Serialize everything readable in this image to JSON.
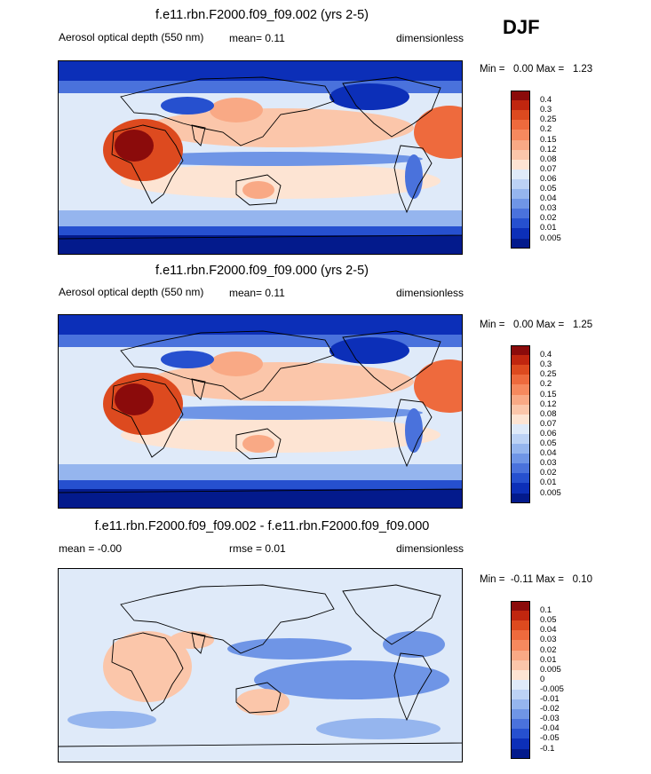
{
  "season": "DJF",
  "panels": [
    {
      "title": "f.e11.rbn.F2000.f09_f09.002 (yrs 2-5)",
      "left": "Aerosol optical depth (550 nm)",
      "middle": "mean=  0.11",
      "right": "dimensionless",
      "minmax": "Min =   0.00 Max =   1.23"
    },
    {
      "title": "f.e11.rbn.F2000.f09_f09.000 (yrs 2-5)",
      "left": "Aerosol optical depth (550 nm)",
      "middle": "mean=  0.11",
      "right": "dimensionless",
      "minmax": "Min =   0.00 Max =   1.25"
    },
    {
      "title": "f.e11.rbn.F2000.f09_f09.002 - f.e11.rbn.F2000.f09_f09.000",
      "left": "mean = -0.00",
      "middle": "rmse =  0.01",
      "right": "dimensionless",
      "minmax": "Min =  -0.11 Max =   0.10"
    }
  ],
  "chart_data": [
    {
      "type": "heatmap",
      "title": "f.e11.rbn.F2000.f09_f09.002 (yrs 2-5)",
      "variable": "Aerosol optical depth (550 nm)",
      "units": "dimensionless",
      "mean": 0.11,
      "min": 0.0,
      "max": 1.23,
      "levels": [
        "0.4",
        "0.3",
        "0.25",
        "0.2",
        "0.15",
        "0.12",
        "0.08",
        "0.07",
        "0.06",
        "0.05",
        "0.04",
        "0.03",
        "0.02",
        "0.01",
        "0.005"
      ],
      "colors": [
        "#8b0b0b",
        "#c0260f",
        "#dd4a1f",
        "#ee6a3d",
        "#f6895e",
        "#f9a985",
        "#fbc6aa",
        "#fde4d3",
        "#dfeaf9",
        "#bcd2f5",
        "#95b5ee",
        "#6f95e6",
        "#4a72dc",
        "#2650cf",
        "#0c2fb8",
        "#031a8c"
      ]
    },
    {
      "type": "heatmap",
      "title": "f.e11.rbn.F2000.f09_f09.000 (yrs 2-5)",
      "variable": "Aerosol optical depth (550 nm)",
      "units": "dimensionless",
      "mean": 0.11,
      "min": 0.0,
      "max": 1.25,
      "levels": [
        "0.4",
        "0.3",
        "0.25",
        "0.2",
        "0.15",
        "0.12",
        "0.08",
        "0.07",
        "0.06",
        "0.05",
        "0.04",
        "0.03",
        "0.02",
        "0.01",
        "0.005"
      ],
      "colors": [
        "#8b0b0b",
        "#c0260f",
        "#dd4a1f",
        "#ee6a3d",
        "#f6895e",
        "#f9a985",
        "#fbc6aa",
        "#fde4d3",
        "#dfeaf9",
        "#bcd2f5",
        "#95b5ee",
        "#6f95e6",
        "#4a72dc",
        "#2650cf",
        "#0c2fb8",
        "#031a8c"
      ]
    },
    {
      "type": "heatmap",
      "title": "f.e11.rbn.F2000.f09_f09.002 - f.e11.rbn.F2000.f09_f09.000",
      "units": "dimensionless",
      "mean": -0.0,
      "rmse": 0.01,
      "min": -0.11,
      "max": 0.1,
      "levels": [
        "0.1",
        "0.05",
        "0.04",
        "0.03",
        "0.02",
        "0.01",
        "0.005",
        "0",
        "-0.005",
        "-0.01",
        "-0.02",
        "-0.03",
        "-0.04",
        "-0.05",
        "-0.1"
      ],
      "colors": [
        "#8b0b0b",
        "#c0260f",
        "#dd4a1f",
        "#ee6a3d",
        "#f6895e",
        "#f9a985",
        "#fbc6aa",
        "#fde4d3",
        "#dfeaf9",
        "#bcd2f5",
        "#95b5ee",
        "#6f95e6",
        "#4a72dc",
        "#2650cf",
        "#0c2fb8",
        "#031a8c"
      ]
    }
  ]
}
